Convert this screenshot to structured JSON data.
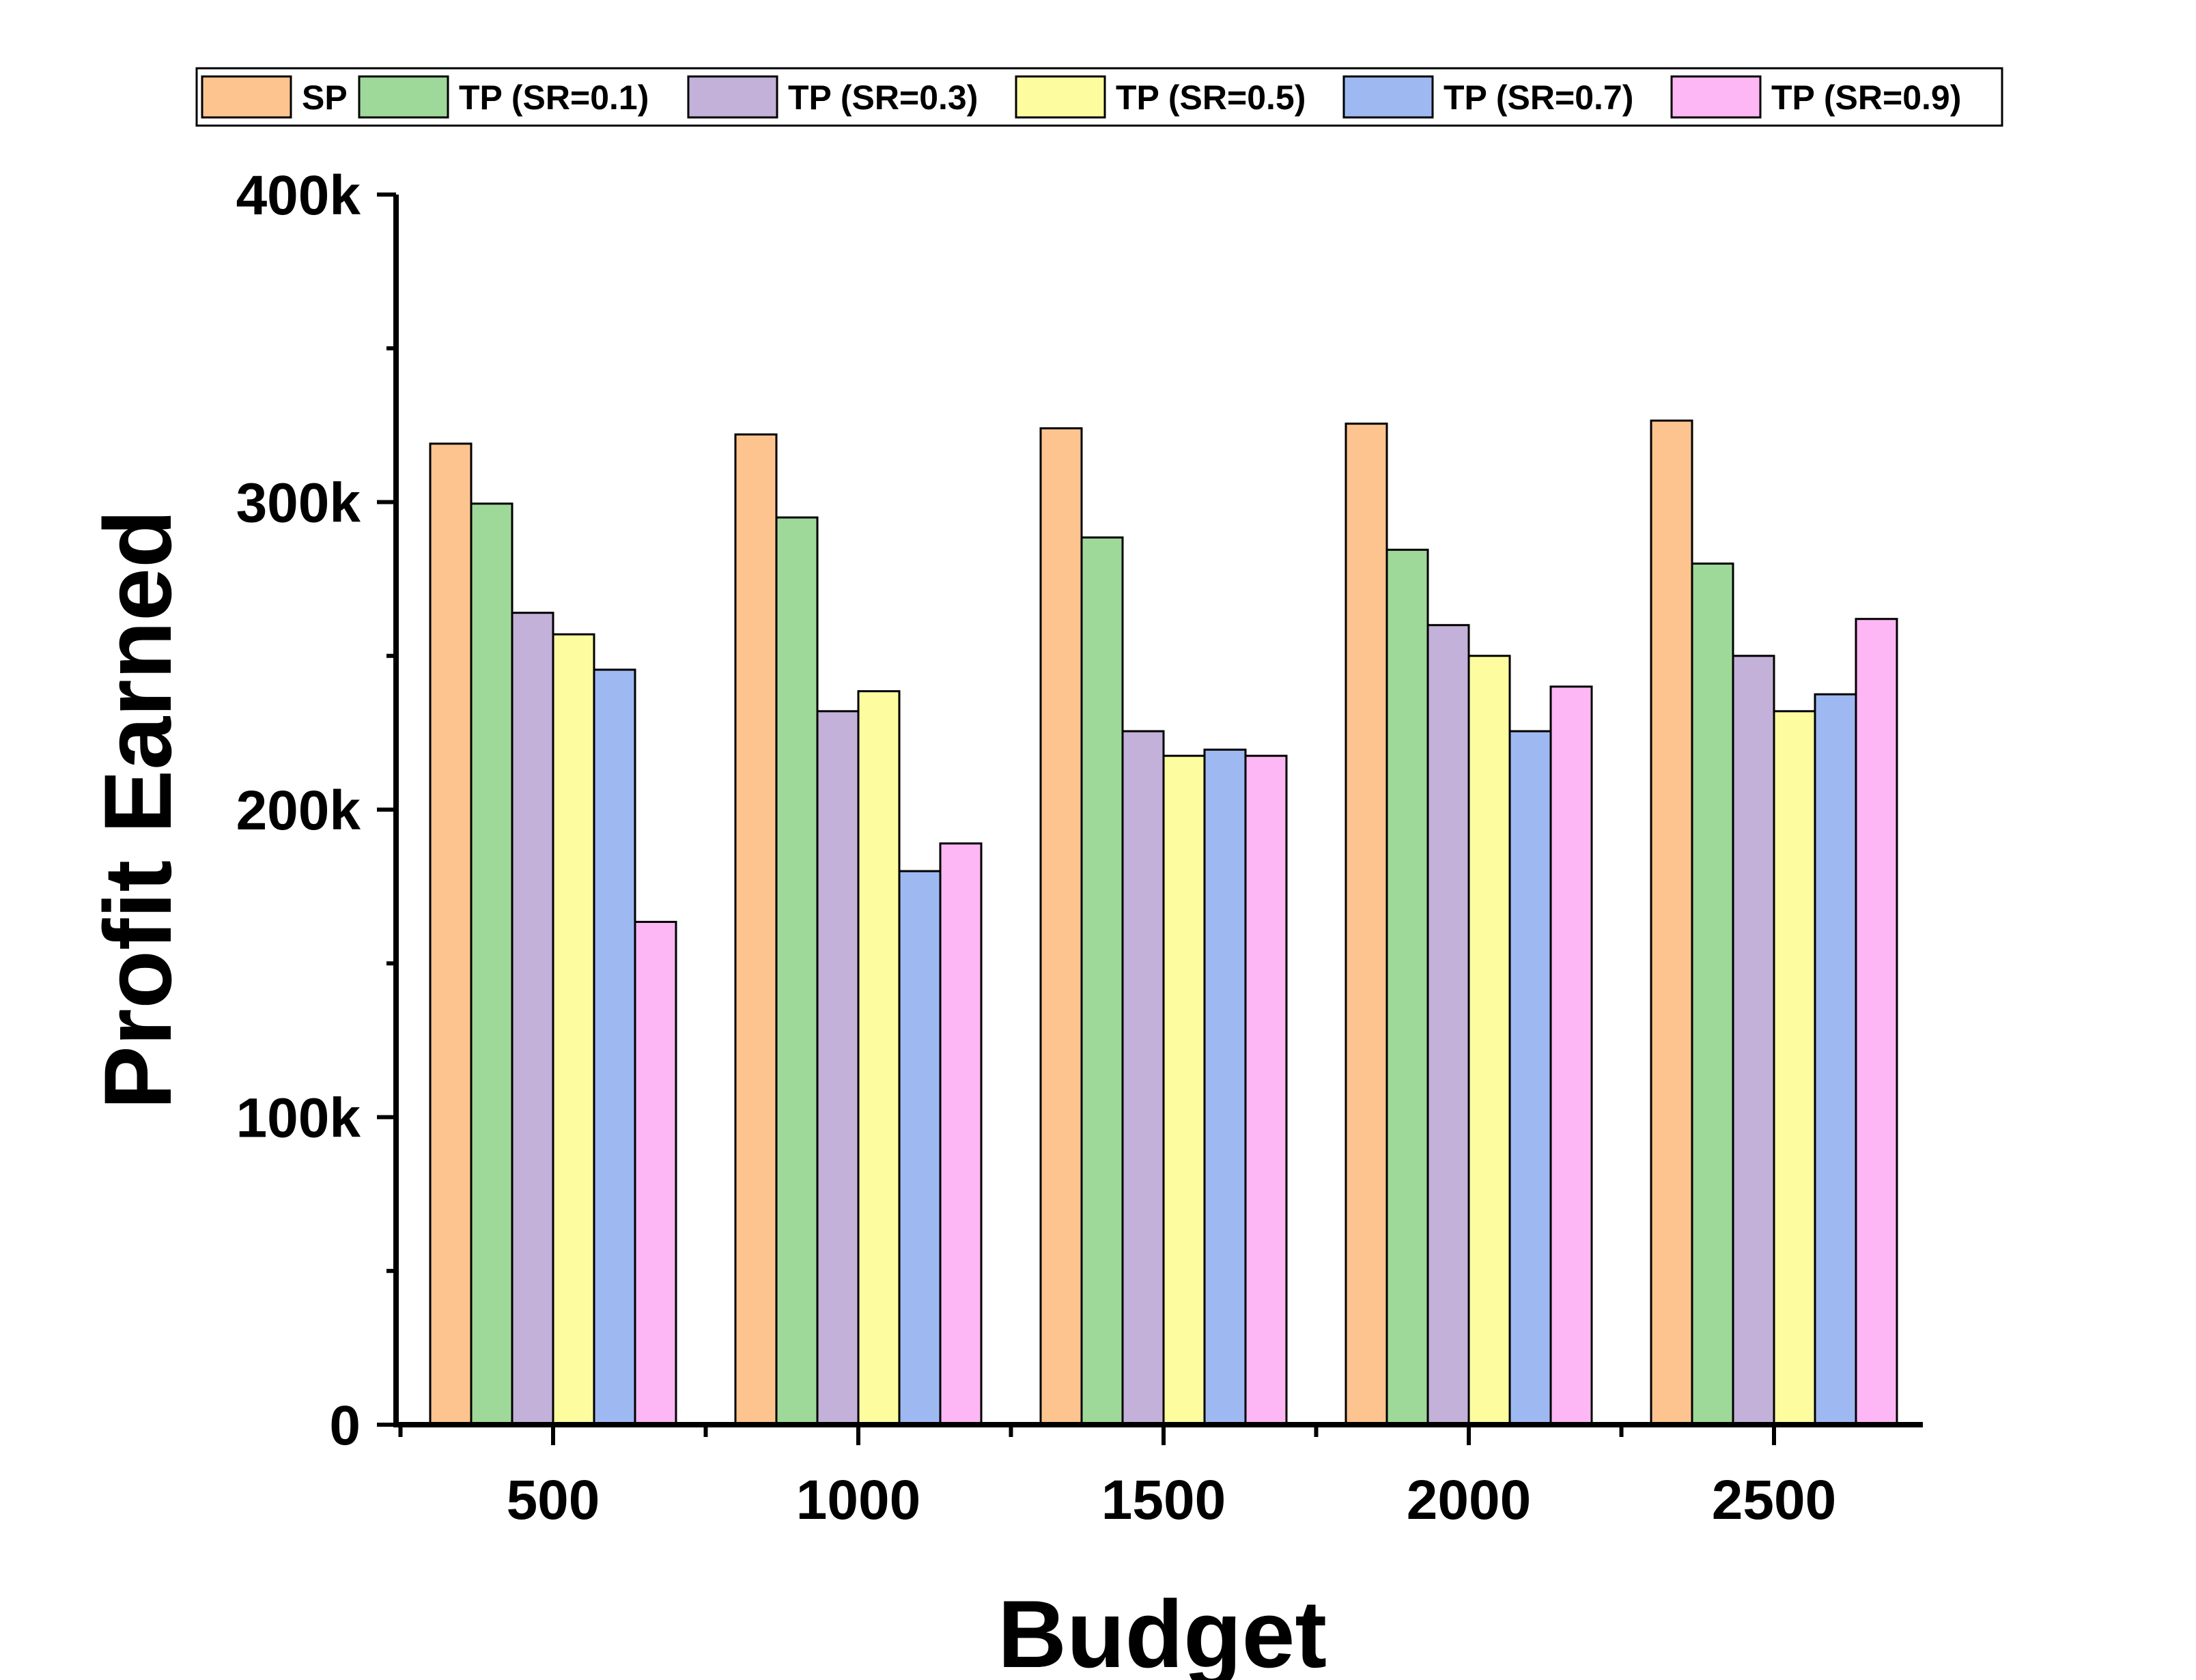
{
  "chart_data": {
    "type": "bar",
    "title": "",
    "xlabel": "Budget",
    "ylabel": "Profit Earned",
    "categories": [
      "500",
      "1000",
      "1500",
      "2000",
      "2500"
    ],
    "ylim": [
      0,
      400000
    ],
    "yticks": [
      0,
      100000,
      200000,
      300000,
      400000
    ],
    "ytick_labels": [
      "0",
      "100k",
      "200k",
      "300k",
      "400k"
    ],
    "grid": false,
    "legend_position": "top",
    "series": [
      {
        "name": "SP",
        "color": "#FDC48F",
        "values": [
          319000,
          322000,
          324000,
          325500,
          326500
        ]
      },
      {
        "name": "TP (SR=0.1)",
        "color": "#9FD99A",
        "values": [
          299500,
          295000,
          288500,
          284500,
          280000
        ]
      },
      {
        "name": "TP (SR=0.3)",
        "color": "#C3B1D9",
        "values": [
          264000,
          232000,
          225500,
          260000,
          250000
        ]
      },
      {
        "name": "TP (SR=0.5)",
        "color": "#FDFDA0",
        "values": [
          257000,
          238500,
          217500,
          250000,
          232000
        ]
      },
      {
        "name": "TP (SR=0.7)",
        "color": "#9EB9F2",
        "values": [
          245500,
          180000,
          219500,
          225500,
          237500
        ]
      },
      {
        "name": "TP (SR=0.9)",
        "color": "#FDB7F4",
        "values": [
          163500,
          189000,
          217500,
          240000,
          262000
        ]
      }
    ]
  }
}
